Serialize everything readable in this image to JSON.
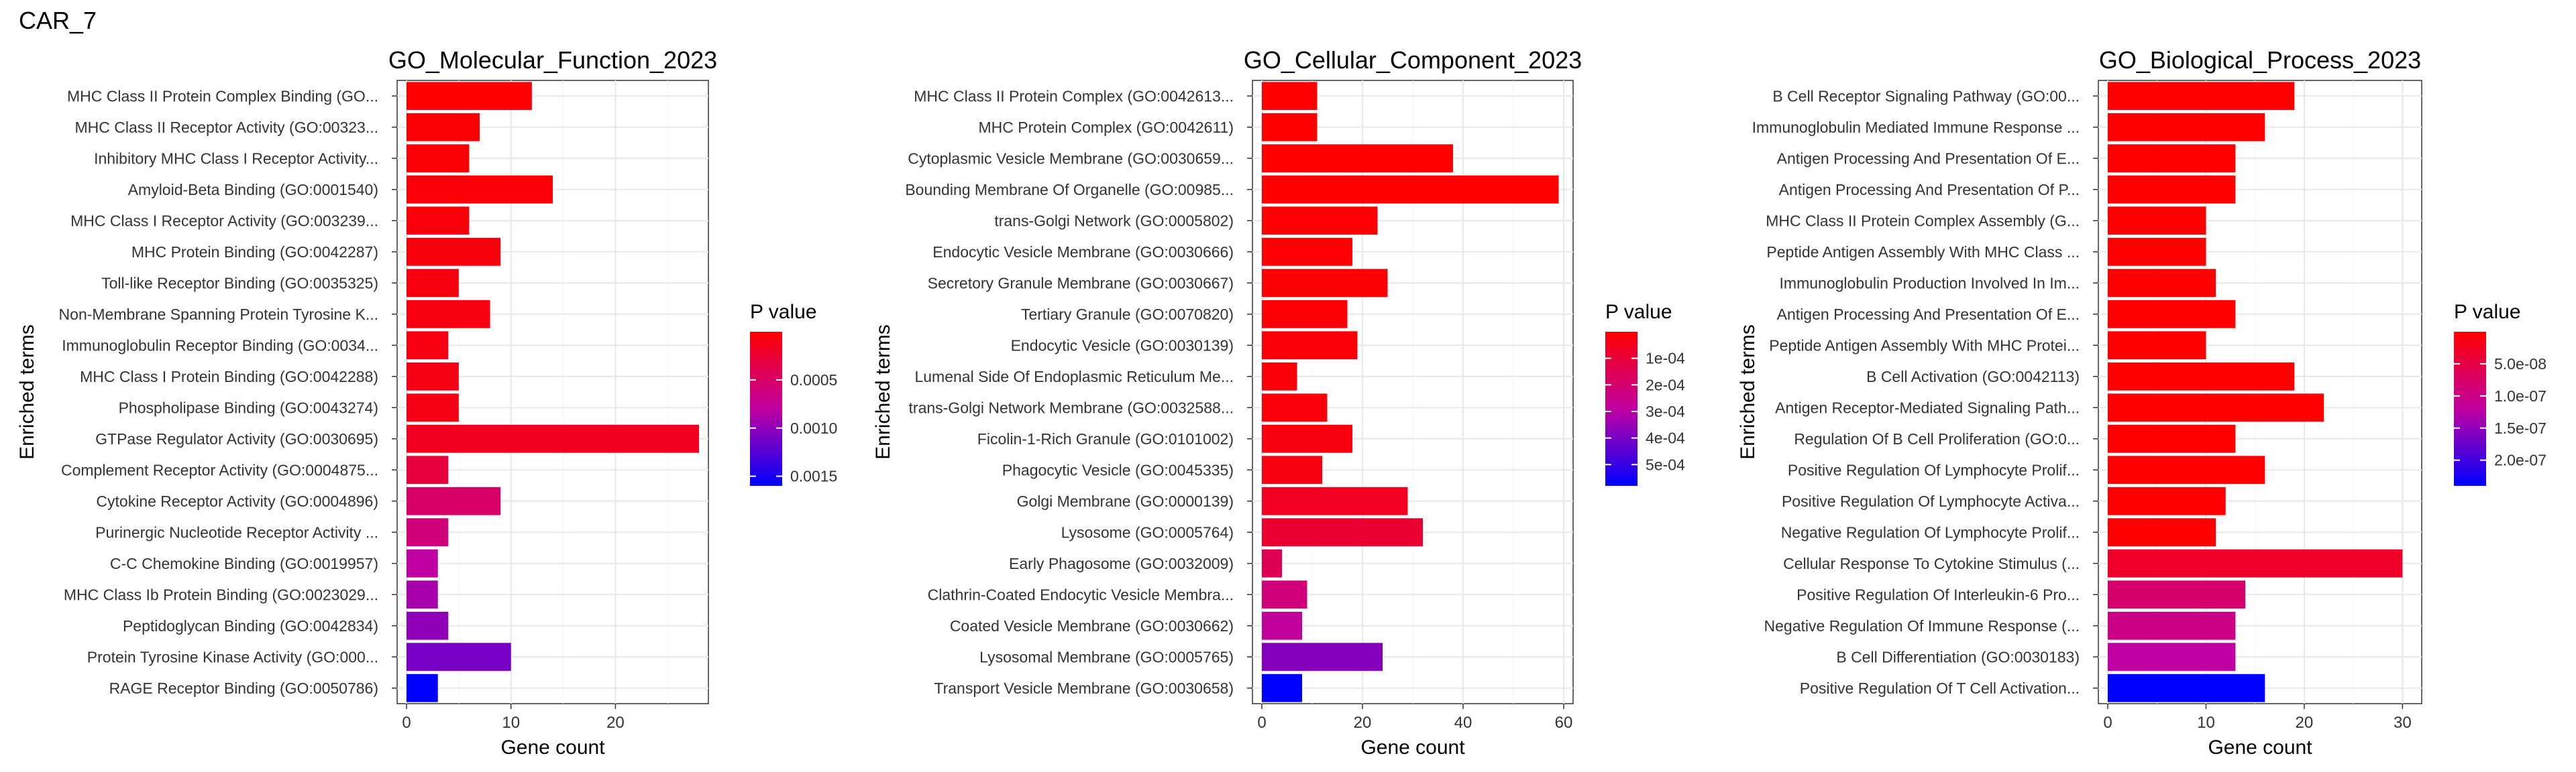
{
  "page": {
    "title": "CAR_7"
  },
  "legend_title": "P value",
  "xlabel": "Gene count",
  "ylabel": "Enriched terms",
  "gradient": {
    "low": "#ff0000",
    "mid": "#c000a0",
    "high": "#0000ff"
  },
  "chart_data": [
    {
      "type": "bar",
      "title": "GO_Molecular_Function_2023",
      "xlabel": "Gene count",
      "ylabel": "Enriched terms",
      "xlim": [
        0,
        28
      ],
      "xticks": [
        0,
        10,
        20
      ],
      "categories": [
        "MHC Class II Protein Complex Binding (GO...",
        "MHC Class II Receptor Activity (GO:00323...",
        "Inhibitory MHC Class I Receptor Activity...",
        "Amyloid-Beta Binding (GO:0001540)",
        "MHC Class I Receptor Activity (GO:003239...",
        "MHC Protein Binding (GO:0042287)",
        "Toll-like Receptor Binding (GO:0035325)",
        "Non-Membrane Spanning Protein Tyrosine K...",
        "Immunoglobulin Receptor Binding (GO:0034...",
        "MHC Class I Protein Binding (GO:0042288)",
        "Phospholipase Binding (GO:0043274)",
        "GTPase Regulator Activity (GO:0030695)",
        "Complement Receptor Activity (GO:0004875...",
        "Cytokine Receptor Activity (GO:0004896)",
        "Purinergic Nucleotide Receptor Activity ...",
        "C-C Chemokine Binding (GO:0019957)",
        "MHC Class Ib Protein Binding (GO:0023029...",
        "Peptidoglycan Binding (GO:0042834)",
        "Protein Tyrosine Kinase Activity (GO:000...",
        "RAGE Receptor Binding (GO:0050786)"
      ],
      "values": [
        12,
        7,
        6,
        14,
        6,
        9,
        5,
        8,
        4,
        5,
        5,
        28,
        4,
        9,
        4,
        3,
        3,
        4,
        10,
        3
      ],
      "pvalues": [
        1e-05,
        2e-05,
        3e-05,
        4e-05,
        5e-05,
        6e-05,
        7e-05,
        8e-05,
        9e-05,
        0.0001,
        0.00011,
        0.00015,
        0.0003,
        0.0005,
        0.0006,
        0.0008,
        0.0009,
        0.001,
        0.0011,
        0.0016
      ],
      "legend": {
        "range": [
          0.0,
          0.0016
        ],
        "ticks": [
          0.0005,
          0.001,
          0.0015
        ],
        "labels": [
          "0.0005",
          "0.0010",
          "0.0015"
        ]
      }
    },
    {
      "type": "bar",
      "title": "GO_Cellular_Component_2023",
      "xlabel": "Gene count",
      "ylabel": "Enriched terms",
      "xlim": [
        0,
        60
      ],
      "xticks": [
        0,
        20,
        40,
        60
      ],
      "categories": [
        "MHC Class II Protein Complex (GO:0042613...",
        "MHC Protein Complex (GO:0042611)",
        "Cytoplasmic Vesicle Membrane (GO:0030659...",
        "Bounding Membrane Of Organelle (GO:00985...",
        "trans-Golgi Network (GO:0005802)",
        "Endocytic Vesicle Membrane (GO:0030666)",
        "Secretory Granule Membrane (GO:0030667)",
        "Tertiary Granule (GO:0070820)",
        "Endocytic Vesicle (GO:0030139)",
        "Lumenal Side Of Endoplasmic Reticulum Me...",
        "trans-Golgi Network Membrane (GO:0032588...",
        "Ficolin-1-Rich Granule (GO:0101002)",
        "Phagocytic Vesicle (GO:0045335)",
        "Golgi Membrane (GO:0000139)",
        "Lysosome (GO:0005764)",
        "Early Phagosome (GO:0032009)",
        "Clathrin-Coated Endocytic Vesicle Membra...",
        "Coated Vesicle Membrane (GO:0030662)",
        "Lysosomal Membrane (GO:0005765)",
        "Transport Vesicle Membrane (GO:0030658)"
      ],
      "values": [
        11,
        11,
        38,
        59,
        23,
        18,
        25,
        17,
        19,
        7,
        13,
        18,
        12,
        29,
        32,
        4,
        9,
        8,
        24,
        8
      ],
      "pvalues": [
        1e-06,
        2e-06,
        3e-06,
        4e-06,
        5e-06,
        6e-06,
        8e-06,
        1e-05,
        1.2e-05,
        1.5e-05,
        2e-05,
        2.5e-05,
        3e-05,
        6e-05,
        9e-05,
        0.00015,
        0.00022,
        0.00028,
        0.00038,
        0.00058
      ],
      "legend": {
        "range": [
          0.0,
          0.00058
        ],
        "ticks": [
          0.0001,
          0.0002,
          0.0003,
          0.0004,
          0.0005
        ],
        "labels": [
          "1e-04",
          "2e-04",
          "3e-04",
          "4e-04",
          "5e-04"
        ]
      }
    },
    {
      "type": "bar",
      "title": "GO_Biological_Process_2023",
      "xlabel": "Gene count",
      "ylabel": "Enriched terms",
      "xlim": [
        0,
        31
      ],
      "xticks": [
        0,
        10,
        20,
        30
      ],
      "categories": [
        "B Cell Receptor Signaling Pathway (GO:00...",
        "Immunoglobulin Mediated Immune Response ...",
        "Antigen Processing And Presentation Of E...",
        "Antigen Processing And Presentation Of P...",
        "MHC Class II Protein Complex Assembly (G...",
        "Peptide Antigen Assembly With MHC Class ...",
        "Immunoglobulin Production Involved In Im...",
        "Antigen Processing And Presentation Of E...",
        "Peptide Antigen Assembly With MHC Protei...",
        "B Cell Activation (GO:0042113)",
        "Antigen Receptor-Mediated Signaling Path...",
        "Regulation Of B Cell Proliferation (GO:0...",
        "Positive Regulation Of Lymphocyte Prolif...",
        "Positive Regulation Of Lymphocyte Activa...",
        "Negative Regulation Of Lymphocyte Prolif...",
        "Cellular Response To Cytokine Stimulus (...",
        "Positive Regulation Of Interleukin-6 Pro...",
        "Negative Regulation Of Immune Response (...",
        "B Cell Differentiation (GO:0030183)",
        "Positive Regulation Of T Cell Activation..."
      ],
      "values": [
        19,
        16,
        13,
        13,
        10,
        10,
        11,
        13,
        10,
        19,
        22,
        13,
        16,
        12,
        11,
        30,
        14,
        13,
        13,
        16
      ],
      "pvalues": [
        0.0,
        0.0,
        0.0,
        0.0,
        0.0,
        0.0,
        0.0,
        0.0,
        0.0,
        0.0,
        0.0,
        0.0,
        0.0,
        0.0,
        0.0,
        3e-08,
        8e-08,
        1e-07,
        1.2e-07,
        2.4e-07
      ],
      "legend": {
        "range": [
          0.0,
          2.4e-07
        ],
        "ticks": [
          5e-08,
          1e-07,
          1.5e-07,
          2e-07
        ],
        "labels": [
          "5.0e-08",
          "1.0e-07",
          "1.5e-07",
          "2.0e-07"
        ]
      }
    }
  ]
}
